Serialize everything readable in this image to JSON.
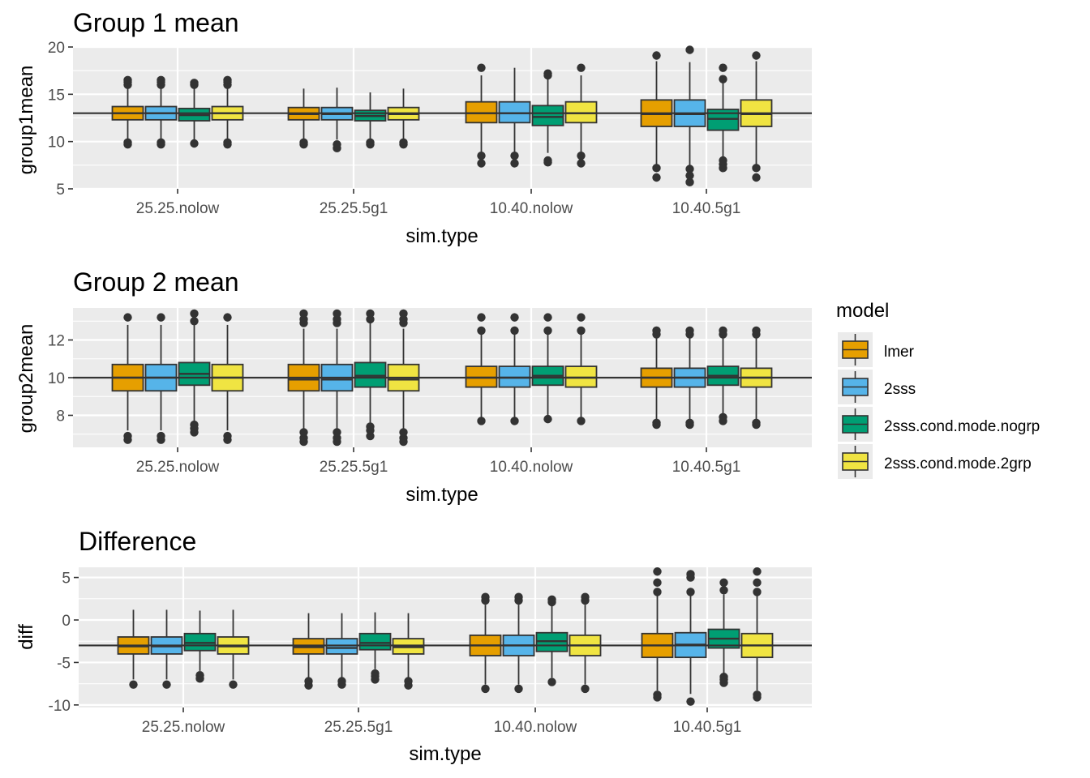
{
  "legend": {
    "title": "model",
    "items": [
      {
        "label": "lmer",
        "color": "#E69F00"
      },
      {
        "label": "2sss",
        "color": "#56B4E9"
      },
      {
        "label": "2sss.cond.mode.nogrp",
        "color": "#009E73"
      },
      {
        "label": "2sss.cond.mode.2grp",
        "color": "#F0E442"
      }
    ]
  },
  "chart_data": [
    {
      "type": "boxplot",
      "title": "Group 1 mean",
      "xlabel": "sim.type",
      "ylabel": "group1mean",
      "categories": [
        "25.25.nolow",
        "25.25.5g1",
        "10.40.nolow",
        "10.40.5g1"
      ],
      "ylim": [
        5,
        20
      ],
      "yticks": [
        5,
        10,
        15,
        20
      ],
      "hline": 13,
      "background": "#EBEBEB",
      "grid": true,
      "series": [
        {
          "name": "lmer",
          "boxes": [
            {
              "q1": 12.3,
              "median": 13.0,
              "q3": 13.7,
              "whisker_low": 10.2,
              "whisker_high": 15.8,
              "outliers": [
                9.7,
                9.9,
                16.0,
                16.3,
                16.5
              ]
            },
            {
              "q1": 12.3,
              "median": 12.9,
              "q3": 13.6,
              "whisker_low": 10.2,
              "whisker_high": 15.6,
              "outliers": [
                9.7,
                9.9
              ]
            },
            {
              "q1": 12.0,
              "median": 13.0,
              "q3": 14.2,
              "whisker_low": 8.9,
              "whisker_high": 17.0,
              "outliers": [
                7.7,
                8.5,
                17.8
              ]
            },
            {
              "q1": 11.6,
              "median": 12.9,
              "q3": 14.4,
              "whisker_low": 7.5,
              "whisker_high": 18.5,
              "outliers": [
                6.2,
                7.2,
                19.1
              ]
            }
          ]
        },
        {
          "name": "2sss",
          "boxes": [
            {
              "q1": 12.3,
              "median": 13.0,
              "q3": 13.7,
              "whisker_low": 10.2,
              "whisker_high": 15.8,
              "outliers": [
                9.7,
                9.9,
                16.0,
                16.3,
                16.5
              ]
            },
            {
              "q1": 12.3,
              "median": 12.9,
              "q3": 13.6,
              "whisker_low": 10.2,
              "whisker_high": 15.7,
              "outliers": [
                9.3,
                9.7
              ]
            },
            {
              "q1": 12.0,
              "median": 13.0,
              "q3": 14.2,
              "whisker_low": 8.9,
              "whisker_high": 17.8,
              "outliers": [
                7.7,
                8.5
              ]
            },
            {
              "q1": 11.6,
              "median": 12.9,
              "q3": 14.4,
              "whisker_low": 7.5,
              "whisker_high": 18.4,
              "outliers": [
                5.7,
                6.4,
                7.1,
                19.7
              ]
            }
          ]
        },
        {
          "name": "2sss.cond.mode.nogrp",
          "boxes": [
            {
              "q1": 12.2,
              "median": 12.8,
              "q3": 13.5,
              "whisker_low": 10.2,
              "whisker_high": 15.6,
              "outliers": [
                9.8,
                16.0,
                16.2
              ]
            },
            {
              "q1": 12.2,
              "median": 12.7,
              "q3": 13.3,
              "whisker_low": 10.3,
              "whisker_high": 15.2,
              "outliers": [
                9.7,
                9.9
              ]
            },
            {
              "q1": 11.7,
              "median": 12.6,
              "q3": 13.8,
              "whisker_low": 8.8,
              "whisker_high": 16.7,
              "outliers": [
                7.8,
                8.0,
                17.0,
                17.2
              ]
            },
            {
              "q1": 11.2,
              "median": 12.4,
              "q3": 13.4,
              "whisker_low": 8.2,
              "whisker_high": 16.4,
              "outliers": [
                7.2,
                7.6,
                8.0,
                16.6,
                17.8
              ]
            }
          ]
        },
        {
          "name": "2sss.cond.mode.2grp",
          "boxes": [
            {
              "q1": 12.3,
              "median": 13.0,
              "q3": 13.7,
              "whisker_low": 10.2,
              "whisker_high": 15.8,
              "outliers": [
                9.7,
                9.9,
                16.0,
                16.3,
                16.5
              ]
            },
            {
              "q1": 12.3,
              "median": 12.9,
              "q3": 13.6,
              "whisker_low": 10.2,
              "whisker_high": 15.6,
              "outliers": [
                9.7,
                9.9
              ]
            },
            {
              "q1": 12.0,
              "median": 13.0,
              "q3": 14.2,
              "whisker_low": 8.9,
              "whisker_high": 17.0,
              "outliers": [
                7.7,
                8.5,
                17.8
              ]
            },
            {
              "q1": 11.6,
              "median": 12.9,
              "q3": 14.4,
              "whisker_low": 7.5,
              "whisker_high": 18.5,
              "outliers": [
                6.2,
                7.2,
                19.1
              ]
            }
          ]
        }
      ]
    },
    {
      "type": "boxplot",
      "title": "Group 2 mean",
      "xlabel": "sim.type",
      "ylabel": "group2mean",
      "categories": [
        "25.25.nolow",
        "25.25.5g1",
        "10.40.nolow",
        "10.40.5g1"
      ],
      "ylim": [
        6.3,
        13.7
      ],
      "yticks": [
        8,
        10,
        12
      ],
      "hline": 10,
      "background": "#EBEBEB",
      "grid": true,
      "series": [
        {
          "name": "lmer",
          "boxes": [
            {
              "q1": 9.3,
              "median": 10.0,
              "q3": 10.7,
              "whisker_low": 7.2,
              "whisker_high": 12.8,
              "outliers": [
                6.7,
                6.9,
                13.2
              ]
            },
            {
              "q1": 9.3,
              "median": 9.9,
              "q3": 10.7,
              "whisker_low": 7.3,
              "whisker_high": 12.6,
              "outliers": [
                6.6,
                6.8,
                7.1,
                12.9,
                13.1,
                13.4
              ]
            },
            {
              "q1": 9.5,
              "median": 10.0,
              "q3": 10.6,
              "whisker_low": 7.8,
              "whisker_high": 12.3,
              "outliers": [
                7.7,
                12.5,
                13.2
              ]
            },
            {
              "q1": 9.5,
              "median": 10.0,
              "q3": 10.5,
              "whisker_low": 7.8,
              "whisker_high": 12.1,
              "outliers": [
                7.5,
                7.6,
                12.3,
                12.5
              ]
            }
          ]
        },
        {
          "name": "2sss",
          "boxes": [
            {
              "q1": 9.3,
              "median": 10.0,
              "q3": 10.7,
              "whisker_low": 7.2,
              "whisker_high": 12.8,
              "outliers": [
                6.7,
                6.9,
                13.2
              ]
            },
            {
              "q1": 9.3,
              "median": 9.9,
              "q3": 10.7,
              "whisker_low": 7.3,
              "whisker_high": 12.6,
              "outliers": [
                6.6,
                6.8,
                7.1,
                12.9,
                13.1,
                13.4
              ]
            },
            {
              "q1": 9.5,
              "median": 10.0,
              "q3": 10.6,
              "whisker_low": 7.8,
              "whisker_high": 12.3,
              "outliers": [
                7.7,
                12.5,
                13.2
              ]
            },
            {
              "q1": 9.5,
              "median": 10.0,
              "q3": 10.5,
              "whisker_low": 7.8,
              "whisker_high": 12.1,
              "outliers": [
                7.5,
                7.6,
                12.3,
                12.5
              ]
            }
          ]
        },
        {
          "name": "2sss.cond.mode.nogrp",
          "boxes": [
            {
              "q1": 9.6,
              "median": 10.2,
              "q3": 10.8,
              "whisker_low": 7.6,
              "whisker_high": 12.8,
              "outliers": [
                7.1,
                7.3,
                7.5,
                13.0,
                13.4
              ]
            },
            {
              "q1": 9.5,
              "median": 10.1,
              "q3": 10.8,
              "whisker_low": 7.5,
              "whisker_high": 12.9,
              "outliers": [
                6.9,
                7.2,
                7.4,
                13.1,
                13.4
              ]
            },
            {
              "q1": 9.6,
              "median": 10.1,
              "q3": 10.6,
              "whisker_low": 7.9,
              "whisker_high": 12.3,
              "outliers": [
                7.8,
                12.5,
                13.2
              ]
            },
            {
              "q1": 9.6,
              "median": 10.1,
              "q3": 10.6,
              "whisker_low": 8.1,
              "whisker_high": 12.1,
              "outliers": [
                7.7,
                7.9,
                12.3,
                12.5
              ]
            }
          ]
        },
        {
          "name": "2sss.cond.mode.2grp",
          "boxes": [
            {
              "q1": 9.3,
              "median": 10.0,
              "q3": 10.7,
              "whisker_low": 7.2,
              "whisker_high": 12.8,
              "outliers": [
                6.7,
                6.9,
                13.2
              ]
            },
            {
              "q1": 9.3,
              "median": 9.9,
              "q3": 10.7,
              "whisker_low": 7.3,
              "whisker_high": 12.6,
              "outliers": [
                6.6,
                6.8,
                7.1,
                12.9,
                13.1,
                13.4
              ]
            },
            {
              "q1": 9.5,
              "median": 10.0,
              "q3": 10.6,
              "whisker_low": 7.8,
              "whisker_high": 12.3,
              "outliers": [
                7.7,
                12.5,
                13.2
              ]
            },
            {
              "q1": 9.5,
              "median": 10.0,
              "q3": 10.5,
              "whisker_low": 7.8,
              "whisker_high": 12.1,
              "outliers": [
                7.5,
                7.6,
                12.3,
                12.5
              ]
            }
          ]
        }
      ]
    },
    {
      "type": "boxplot",
      "title": "Difference",
      "xlabel": "sim.type",
      "ylabel": "diff",
      "categories": [
        "25.25.nolow",
        "25.25.5g1",
        "10.40.nolow",
        "10.40.5g1"
      ],
      "ylim": [
        -10.3,
        6.2
      ],
      "yticks": [
        -10,
        -5,
        0,
        5
      ],
      "hline": -3,
      "background": "#EBEBEB",
      "grid": true,
      "series": [
        {
          "name": "lmer",
          "boxes": [
            {
              "q1": -4.0,
              "median": -3.1,
              "q3": -2.0,
              "whisker_low": -7.0,
              "whisker_high": 1.2,
              "outliers": [
                -7.6
              ]
            },
            {
              "q1": -4.0,
              "median": -3.2,
              "q3": -2.2,
              "whisker_low": -6.8,
              "whisker_high": 0.8,
              "outliers": [
                -7.2,
                -7.7
              ]
            },
            {
              "q1": -4.2,
              "median": -3.0,
              "q3": -1.8,
              "whisker_low": -7.6,
              "whisker_high": 1.8,
              "outliers": [
                -8.1,
                2.3,
                2.7
              ]
            },
            {
              "q1": -4.4,
              "median": -3.0,
              "q3": -1.6,
              "whisker_low": -8.3,
              "whisker_high": 3.0,
              "outliers": [
                -9.1,
                -8.8,
                3.3,
                4.4,
                5.7
              ]
            }
          ]
        },
        {
          "name": "2sss",
          "boxes": [
            {
              "q1": -4.0,
              "median": -3.1,
              "q3": -2.0,
              "whisker_low": -7.0,
              "whisker_high": 1.2,
              "outliers": [
                -7.6
              ]
            },
            {
              "q1": -4.0,
              "median": -3.3,
              "q3": -2.2,
              "whisker_low": -6.8,
              "whisker_high": 0.8,
              "outliers": [
                -7.2,
                -7.6
              ]
            },
            {
              "q1": -4.2,
              "median": -3.0,
              "q3": -1.8,
              "whisker_low": -7.6,
              "whisker_high": 1.8,
              "outliers": [
                -8.1,
                2.3,
                2.7
              ]
            },
            {
              "q1": -4.4,
              "median": -2.9,
              "q3": -1.5,
              "whisker_low": -8.7,
              "whisker_high": 3.0,
              "outliers": [
                -9.6,
                3.3,
                5.0,
                5.4
              ]
            }
          ]
        },
        {
          "name": "2sss.cond.mode.nogrp",
          "boxes": [
            {
              "q1": -3.6,
              "median": -2.7,
              "q3": -1.6,
              "whisker_low": -6.0,
              "whisker_high": 1.1,
              "outliers": [
                -6.5,
                -6.9
              ]
            },
            {
              "q1": -3.5,
              "median": -2.7,
              "q3": -1.6,
              "whisker_low": -5.8,
              "whisker_high": 0.9,
              "outliers": [
                -6.3,
                -6.6,
                -7.0
              ]
            },
            {
              "q1": -3.7,
              "median": -2.5,
              "q3": -1.5,
              "whisker_low": -6.8,
              "whisker_high": 1.8,
              "outliers": [
                -7.3,
                2.1,
                2.4
              ]
            },
            {
              "q1": -3.3,
              "median": -2.2,
              "q3": -1.1,
              "whisker_low": -6.4,
              "whisker_high": 3.0,
              "outliers": [
                -6.7,
                -7.0,
                -7.4,
                3.5,
                4.4
              ]
            }
          ]
        },
        {
          "name": "2sss.cond.mode.2grp",
          "boxes": [
            {
              "q1": -4.0,
              "median": -3.1,
              "q3": -2.0,
              "whisker_low": -7.0,
              "whisker_high": 1.2,
              "outliers": [
                -7.6
              ]
            },
            {
              "q1": -4.0,
              "median": -3.2,
              "q3": -2.2,
              "whisker_low": -6.8,
              "whisker_high": 0.8,
              "outliers": [
                -7.2,
                -7.7
              ]
            },
            {
              "q1": -4.2,
              "median": -3.0,
              "q3": -1.8,
              "whisker_low": -7.6,
              "whisker_high": 1.8,
              "outliers": [
                -8.1,
                2.3,
                2.7
              ]
            },
            {
              "q1": -4.4,
              "median": -3.0,
              "q3": -1.6,
              "whisker_low": -8.3,
              "whisker_high": 3.0,
              "outliers": [
                -9.1,
                -8.8,
                3.3,
                4.4,
                5.7
              ]
            }
          ]
        }
      ]
    }
  ]
}
